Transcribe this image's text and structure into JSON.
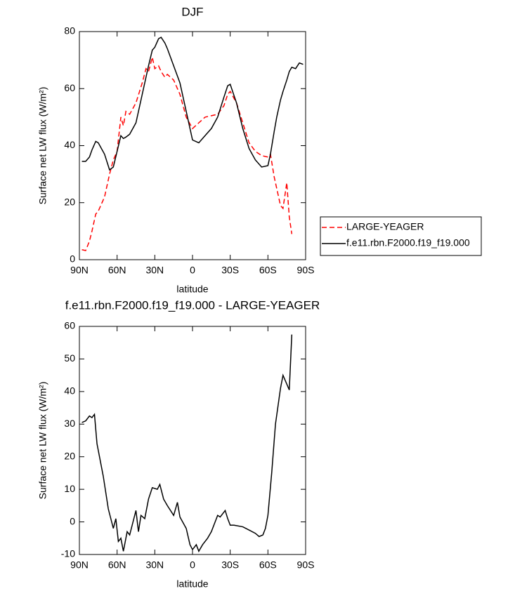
{
  "chart_data": [
    {
      "type": "line",
      "title": "DJF",
      "xlabel": "latitude",
      "ylabel": "Surface net LW flux (W/m²)",
      "x": [
        88,
        85,
        82,
        80,
        77,
        75,
        70,
        66,
        63,
        60,
        57,
        55,
        53,
        50,
        45,
        40,
        37,
        35,
        32,
        30,
        27,
        25,
        22,
        20,
        15,
        10,
        5,
        0,
        -5,
        -10,
        -15,
        -20,
        -25,
        -28,
        -30,
        -35,
        -40,
        -45,
        -50,
        -55,
        -60,
        -62,
        -65,
        -67,
        -70,
        -72,
        -75,
        -77,
        -79,
        -82,
        -85,
        -88
      ],
      "series": [
        {
          "name": "LARGE-YEAGER",
          "color": "#ff0000",
          "line_style": "dashed",
          "values": [
            3.5,
            3.2,
            6.5,
            10,
            16,
            17,
            22,
            30,
            35,
            38,
            50,
            47,
            52,
            51,
            55,
            62,
            67,
            66,
            71,
            67,
            68,
            66,
            64,
            65,
            63,
            58,
            50,
            46,
            48,
            50,
            50.5,
            51,
            54,
            58,
            59,
            55,
            48,
            41,
            38,
            36.5,
            36,
            37,
            29,
            25,
            19,
            18,
            27,
            15,
            9,
            null,
            null,
            null
          ]
        },
        {
          "name": "f.e11.rbn.F2000.f19_f19.000",
          "color": "#000000",
          "line_style": "solid",
          "values": [
            34.5,
            34.5,
            36,
            38.5,
            41.5,
            41,
            37,
            31.5,
            32.5,
            38,
            43.5,
            42.5,
            43,
            44,
            48,
            58,
            64,
            68,
            73.5,
            74.5,
            77.5,
            78,
            76,
            74,
            68,
            62,
            52,
            42,
            41,
            43.5,
            46,
            50,
            57,
            61,
            61.5,
            55,
            46,
            39,
            35,
            32.5,
            33,
            37,
            45,
            50,
            56,
            59,
            63,
            66,
            67.5,
            67,
            69,
            68.5
          ]
        }
      ],
      "xlim": [
        90,
        -90
      ],
      "xticks": [
        {
          "value": 90,
          "label": "90N"
        },
        {
          "value": 60,
          "label": "60N"
        },
        {
          "value": 30,
          "label": "30N"
        },
        {
          "value": 0,
          "label": "0"
        },
        {
          "value": -30,
          "label": "30S"
        },
        {
          "value": -60,
          "label": "60S"
        },
        {
          "value": -90,
          "label": "90S"
        }
      ],
      "ylim": [
        0,
        80
      ],
      "yticks": [
        0,
        20,
        40,
        60,
        80
      ],
      "legend": "right"
    },
    {
      "type": "line",
      "title": "f.e11.rbn.F2000.f19_f19.000 - LARGE-YEAGER",
      "xlabel": "latitude",
      "ylabel": "Surface net LW flux (W/m²)",
      "x": [
        88,
        85,
        82,
        80,
        78,
        76,
        71,
        67,
        63,
        61,
        59,
        57,
        55,
        52,
        50,
        45,
        43,
        41,
        38,
        35,
        32,
        28,
        26,
        23,
        20,
        15,
        12,
        10,
        5,
        2,
        0,
        -3,
        -5,
        -8,
        -12,
        -15,
        -20,
        -22,
        -26,
        -28,
        -30,
        -33,
        -40,
        -45,
        -50,
        -53,
        -56,
        -58,
        -60,
        -63,
        -66,
        -70,
        -72,
        -77,
        -79
      ],
      "series": [
        {
          "color": "#000000",
          "line_style": "solid",
          "values": [
            30.5,
            31,
            32.5,
            32,
            33,
            24,
            14,
            4,
            -2,
            1,
            -6,
            -5,
            -9,
            -3,
            -4,
            3.5,
            -3,
            2,
            1,
            7,
            10.5,
            10,
            11.5,
            7,
            5,
            2,
            6,
            1.5,
            -2,
            -7,
            -8.5,
            -7,
            -9,
            -7,
            -5,
            -3,
            2,
            1.5,
            3.5,
            1,
            -1,
            -1,
            -1.5,
            -2.5,
            -3.5,
            -4.5,
            -4,
            -2,
            2,
            15,
            30,
            41,
            45,
            40.5,
            57.5
          ]
        }
      ],
      "xlim": [
        90,
        -90
      ],
      "xticks": [
        {
          "value": 90,
          "label": "90N"
        },
        {
          "value": 60,
          "label": "60N"
        },
        {
          "value": 30,
          "label": "30N"
        },
        {
          "value": 0,
          "label": "0"
        },
        {
          "value": -30,
          "label": "30S"
        },
        {
          "value": -60,
          "label": "60S"
        },
        {
          "value": -90,
          "label": "90S"
        }
      ],
      "ylim": [
        -10,
        60
      ],
      "yticks": [
        -10,
        0,
        10,
        20,
        30,
        40,
        50,
        60
      ]
    }
  ]
}
